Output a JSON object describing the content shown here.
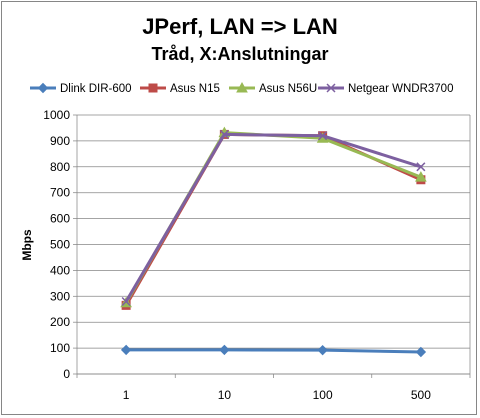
{
  "chart_data": {
    "type": "line",
    "title": "JPerf, LAN => LAN",
    "subtitle": "Tråd, X:Anslutningar",
    "xlabel": "",
    "ylabel": "Mbps",
    "categories": [
      "1",
      "10",
      "100",
      "500"
    ],
    "ylim": [
      0,
      1000
    ],
    "yticks": [
      0,
      100,
      200,
      300,
      400,
      500,
      600,
      700,
      800,
      900,
      1000
    ],
    "grid": true,
    "legend_position": "top",
    "series": [
      {
        "name": "Dlink DIR-600",
        "values": [
          93,
          93,
          92,
          85
        ],
        "color": "#4a7ebb",
        "marker": "diamond"
      },
      {
        "name": "Asus N15",
        "values": [
          265,
          925,
          920,
          750
        ],
        "color": "#be4b48",
        "marker": "square"
      },
      {
        "name": "Asus N56U",
        "values": [
          275,
          932,
          910,
          760
        ],
        "color": "#98b954",
        "marker": "triangle"
      },
      {
        "name": "Netgear WNDR3700",
        "values": [
          280,
          925,
          920,
          800
        ],
        "color": "#7d60a0",
        "marker": "x"
      }
    ]
  }
}
